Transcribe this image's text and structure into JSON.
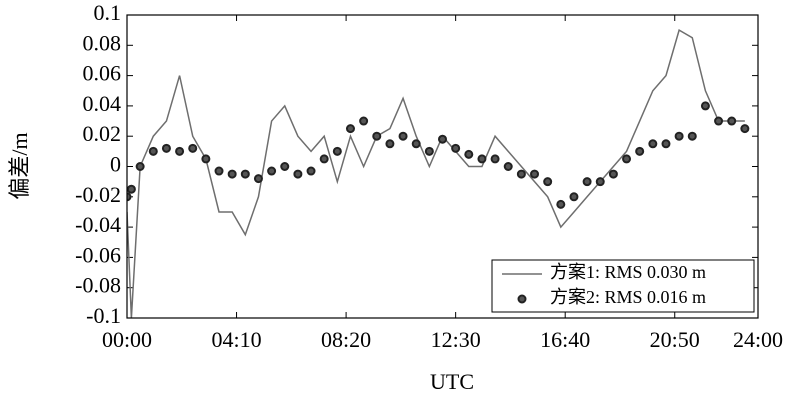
{
  "chart_data": {
    "type": "line-scatter",
    "x_label": "UTC",
    "y_label": "偏差/m",
    "xlim": [
      0,
      1440
    ],
    "ylim": [
      -0.1,
      0.1
    ],
    "xticks": [
      {
        "value": 0,
        "label": "00:00"
      },
      {
        "value": 250,
        "label": "04:10"
      },
      {
        "value": 500,
        "label": "08:20"
      },
      {
        "value": 750,
        "label": "12:30"
      },
      {
        "value": 1000,
        "label": "16:40"
      },
      {
        "value": 1250,
        "label": "20:50"
      },
      {
        "value": 1440,
        "label": "24:00"
      }
    ],
    "yticks": [
      -0.1,
      -0.08,
      -0.06,
      -0.04,
      -0.02,
      0,
      0.02,
      0.04,
      0.06,
      0.08,
      0.1
    ],
    "legend": "lower right",
    "x": [
      0,
      10,
      30,
      60,
      90,
      120,
      150,
      180,
      210,
      240,
      270,
      300,
      330,
      360,
      390,
      420,
      450,
      480,
      510,
      540,
      570,
      600,
      630,
      660,
      690,
      720,
      750,
      780,
      810,
      840,
      870,
      900,
      930,
      960,
      990,
      1020,
      1050,
      1080,
      1110,
      1140,
      1170,
      1200,
      1230,
      1260,
      1290,
      1320,
      1350,
      1380,
      1410
    ],
    "series": [
      {
        "name": "方案1: RMS 0.030 m",
        "kind": "line",
        "color": "#6e6e6e",
        "values": [
          -0.03,
          -0.1,
          0.0,
          0.02,
          0.03,
          0.06,
          0.02,
          0.005,
          -0.03,
          -0.03,
          -0.045,
          -0.02,
          0.03,
          0.04,
          0.02,
          0.01,
          0.02,
          -0.01,
          0.02,
          0.0,
          0.02,
          0.025,
          0.045,
          0.02,
          0.0,
          0.02,
          0.01,
          0.0,
          0.0,
          0.02,
          0.01,
          0.0,
          -0.01,
          -0.02,
          -0.04,
          -0.03,
          -0.02,
          -0.01,
          0.0,
          0.01,
          0.03,
          0.05,
          0.06,
          0.09,
          0.085,
          0.05,
          0.03,
          0.03,
          0.03
        ]
      },
      {
        "name": "方案2: RMS 0.016 m",
        "kind": "scatter",
        "color": "#222222",
        "values": [
          -0.02,
          -0.015,
          0.0,
          0.01,
          0.012,
          0.01,
          0.012,
          0.005,
          -0.003,
          -0.005,
          -0.005,
          -0.008,
          -0.003,
          0.0,
          -0.005,
          -0.003,
          0.005,
          0.01,
          0.025,
          0.03,
          0.02,
          0.015,
          0.02,
          0.015,
          0.01,
          0.018,
          0.012,
          0.008,
          0.005,
          0.005,
          0.0,
          -0.005,
          -0.005,
          -0.01,
          -0.025,
          -0.02,
          -0.01,
          -0.01,
          -0.005,
          0.005,
          0.01,
          0.015,
          0.015,
          0.02,
          0.02,
          0.04,
          0.03,
          0.03,
          0.025
        ]
      }
    ]
  }
}
